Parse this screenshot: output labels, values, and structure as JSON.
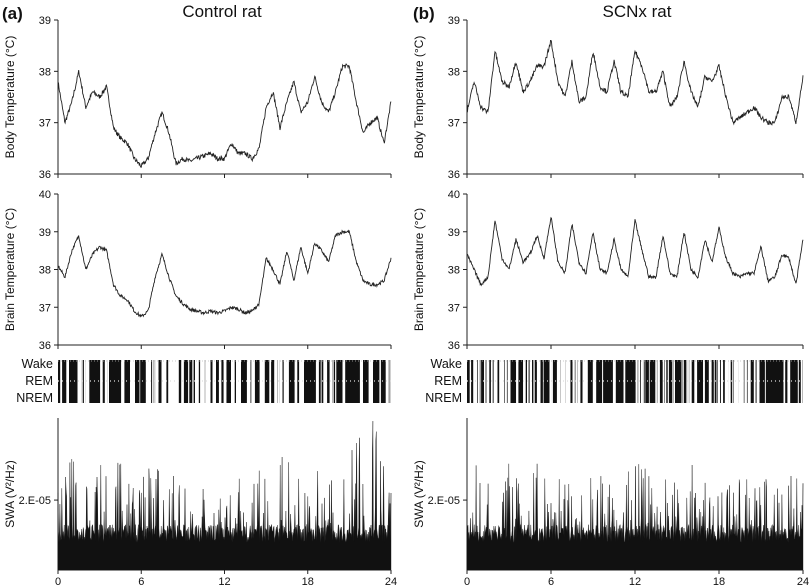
{
  "panels": [
    {
      "label": "(a)",
      "title": "Control rat"
    },
    {
      "label": "(b)",
      "title": "SCNx rat"
    }
  ],
  "chart_data": [
    {
      "type": "line",
      "panel": "(a)",
      "ylabel": "Body Temperature (°C)",
      "ylim": [
        36,
        39
      ],
      "yticks": [
        "36",
        "37",
        "38",
        "39"
      ],
      "xlim": [
        0,
        24
      ],
      "series": [
        {
          "x": [
            0,
            0.5,
            1,
            1.5,
            2,
            2.5,
            3,
            3.5,
            4,
            4.5,
            5,
            5.5,
            6,
            6.5,
            7,
            7.5,
            8,
            8.5,
            9,
            9.5,
            10,
            10.5,
            11,
            11.5,
            12,
            12.5,
            13,
            13.5,
            14,
            14.5,
            15,
            15.5,
            16,
            16.5,
            17,
            17.5,
            18,
            18.5,
            19,
            19.5,
            20,
            20.5,
            21,
            21.5,
            22,
            22.5,
            23,
            23.5,
            24
          ],
          "y": [
            37.8,
            37.0,
            37.4,
            38.0,
            37.3,
            37.6,
            37.5,
            37.7,
            36.9,
            36.7,
            36.6,
            36.3,
            36.15,
            36.3,
            36.8,
            37.2,
            36.8,
            36.2,
            36.3,
            36.25,
            36.3,
            36.35,
            36.4,
            36.3,
            36.3,
            36.6,
            36.4,
            36.4,
            36.3,
            36.5,
            37.3,
            37.6,
            36.9,
            37.4,
            37.8,
            37.2,
            37.4,
            37.9,
            37.4,
            37.2,
            37.6,
            38.1,
            38.1,
            37.4,
            36.8,
            37.0,
            37.1,
            36.6,
            37.4
          ]
        }
      ]
    },
    {
      "type": "line",
      "panel": "(a)",
      "ylabel": "Brain Temperature (°C)",
      "ylim": [
        36,
        40
      ],
      "yticks": [
        "36",
        "37",
        "38",
        "39",
        "40"
      ],
      "xlim": [
        0,
        24
      ],
      "series": [
        {
          "x": [
            0,
            0.5,
            1,
            1.5,
            2,
            2.5,
            3,
            3.5,
            4,
            4.5,
            5,
            5.5,
            6,
            6.5,
            7,
            7.5,
            8,
            8.5,
            9,
            9.5,
            10,
            10.5,
            11,
            11.5,
            12,
            12.5,
            13,
            13.5,
            14,
            14.5,
            15,
            15.5,
            16,
            16.5,
            17,
            17.5,
            18,
            18.5,
            19,
            19.5,
            20,
            20.5,
            21,
            21.5,
            22,
            22.5,
            23,
            23.5,
            24
          ],
          "y": [
            38.1,
            37.8,
            38.5,
            38.9,
            38.0,
            38.4,
            38.6,
            38.5,
            37.6,
            37.3,
            37.2,
            36.9,
            36.75,
            36.9,
            37.8,
            38.4,
            37.8,
            37.3,
            37.1,
            36.95,
            36.9,
            36.85,
            36.9,
            36.85,
            36.9,
            37.0,
            36.95,
            36.85,
            36.9,
            37.1,
            38.3,
            38.0,
            37.6,
            38.5,
            37.7,
            38.6,
            37.9,
            38.7,
            38.5,
            38.2,
            38.9,
            39.0,
            39.0,
            38.2,
            37.7,
            37.6,
            37.6,
            37.7,
            38.3
          ]
        }
      ]
    },
    {
      "type": "line",
      "panel": "(a)",
      "ylabel": "SWA (V²/Hz)",
      "yticks": [
        "2.E-05"
      ],
      "xlim": [
        0,
        24
      ],
      "xticks": [
        "0",
        "6",
        "12",
        "18",
        "24"
      ],
      "series": [
        {
          "x": [
            0,
            1,
            2,
            3,
            4,
            5,
            6,
            7,
            8,
            9,
            10,
            11,
            12,
            13,
            14,
            15,
            16,
            17,
            18,
            19,
            20,
            21,
            22,
            23,
            24
          ],
          "y": [
            0.55,
            0.75,
            0.6,
            0.7,
            0.8,
            0.9,
            0.6,
            0.8,
            0.7,
            0.6,
            0.65,
            0.6,
            0.55,
            0.6,
            0.65,
            0.7,
            0.85,
            0.75,
            0.65,
            0.7,
            0.65,
            0.8,
            0.9,
            1.05,
            0.6
          ]
        }
      ]
    },
    {
      "type": "line",
      "panel": "(b)",
      "ylabel": "Body Temperature (°C)",
      "ylim": [
        36,
        39
      ],
      "yticks": [
        "36",
        "37",
        "38",
        "39"
      ],
      "xlim": [
        0,
        24
      ],
      "series": [
        {
          "x": [
            0,
            0.5,
            1,
            1.5,
            2,
            2.5,
            3,
            3.5,
            4,
            4.5,
            5,
            5.5,
            6,
            6.5,
            7,
            7.5,
            8,
            8.5,
            9,
            9.5,
            10,
            10.5,
            11,
            11.5,
            12,
            12.5,
            13,
            13.5,
            14,
            14.5,
            15,
            15.5,
            16,
            16.5,
            17,
            17.5,
            18,
            18.5,
            19,
            19.5,
            20,
            20.5,
            21,
            21.5,
            22,
            22.5,
            23,
            23.5,
            24
          ],
          "y": [
            37.2,
            37.8,
            37.3,
            37.2,
            38.4,
            37.8,
            37.7,
            38.2,
            37.6,
            37.8,
            38.1,
            38.1,
            38.6,
            37.8,
            37.5,
            38.2,
            37.4,
            37.5,
            38.4,
            37.7,
            37.6,
            38.2,
            37.6,
            37.5,
            38.4,
            38.1,
            37.6,
            37.6,
            38.0,
            37.3,
            37.5,
            38.2,
            37.6,
            37.3,
            37.9,
            37.8,
            38.1,
            37.5,
            37.0,
            37.1,
            37.2,
            37.3,
            37.1,
            37.0,
            37.0,
            37.5,
            37.5,
            37.0,
            37.9
          ]
        }
      ]
    },
    {
      "type": "line",
      "panel": "(b)",
      "ylabel": "Brain Temperature (°C)",
      "ylim": [
        36,
        40
      ],
      "yticks": [
        "36",
        "37",
        "38",
        "39",
        "40"
      ],
      "xlim": [
        0,
        24
      ],
      "series": [
        {
          "x": [
            0,
            0.5,
            1,
            1.5,
            2,
            2.5,
            3,
            3.5,
            4,
            4.5,
            5,
            5.5,
            6,
            6.5,
            7,
            7.5,
            8,
            8.5,
            9,
            9.5,
            10,
            10.5,
            11,
            11.5,
            12,
            12.5,
            13,
            13.5,
            14,
            14.5,
            15,
            15.5,
            16,
            16.5,
            17,
            17.5,
            18,
            18.5,
            19,
            19.5,
            20,
            20.5,
            21,
            21.5,
            22,
            22.5,
            23,
            23.5,
            24
          ],
          "y": [
            38.4,
            38.0,
            37.6,
            37.8,
            39.3,
            38.3,
            38.0,
            38.8,
            38.2,
            38.4,
            38.9,
            38.3,
            39.4,
            38.2,
            37.9,
            39.2,
            38.2,
            37.9,
            39.0,
            38.0,
            37.9,
            38.8,
            38.0,
            37.8,
            39.3,
            38.5,
            37.8,
            37.8,
            38.9,
            37.9,
            37.8,
            39.0,
            38.0,
            37.8,
            38.8,
            38.2,
            39.1,
            38.3,
            37.9,
            37.8,
            37.9,
            37.9,
            38.6,
            37.7,
            37.8,
            38.4,
            38.3,
            37.6,
            38.8
          ]
        }
      ]
    },
    {
      "type": "line",
      "panel": "(b)",
      "ylabel": "SWA (V²/Hz)",
      "yticks": [
        "2.E-05"
      ],
      "xlim": [
        0,
        24
      ],
      "xticks": [
        "0",
        "6",
        "12",
        "18",
        "24"
      ],
      "series": [
        {
          "x": [
            0,
            1,
            2,
            3,
            4,
            5,
            6,
            7,
            8,
            9,
            10,
            11,
            12,
            13,
            14,
            15,
            16,
            17,
            18,
            19,
            20,
            21,
            22,
            23,
            24
          ],
          "y": [
            0.6,
            0.75,
            0.65,
            0.7,
            0.6,
            0.75,
            0.65,
            0.7,
            0.6,
            0.65,
            0.7,
            0.6,
            0.75,
            0.65,
            0.7,
            0.6,
            0.75,
            0.65,
            0.7,
            0.6,
            0.65,
            0.75,
            0.6,
            0.7,
            0.6
          ]
        }
      ]
    }
  ],
  "hypnogram": {
    "levels": [
      "Wake",
      "REM",
      "NREM"
    ]
  }
}
